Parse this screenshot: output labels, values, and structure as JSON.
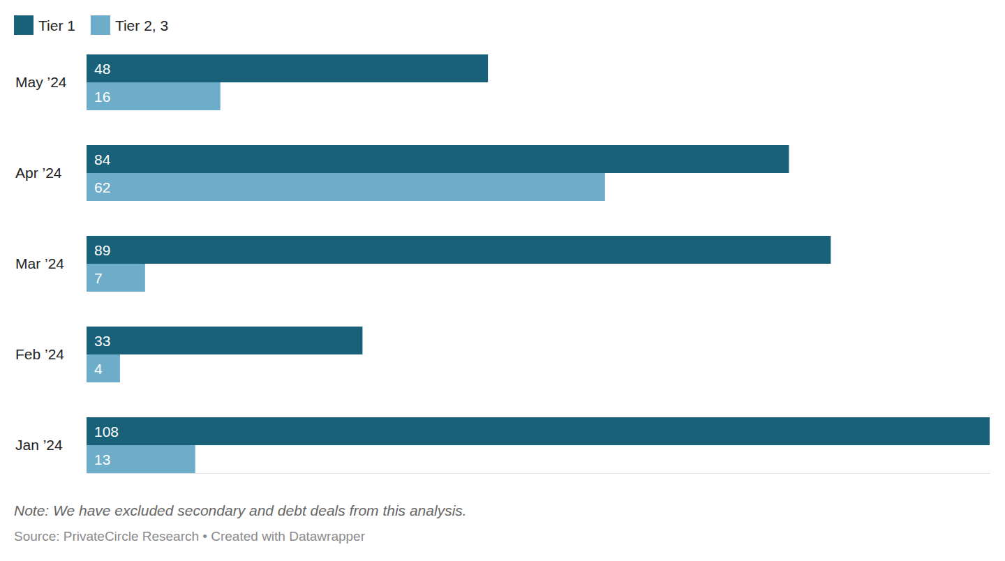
{
  "chart_data": {
    "type": "bar",
    "orientation": "horizontal",
    "data_labels": true,
    "grid": false,
    "legend": "top-left",
    "tick_labels": "y",
    "categories": [
      "May ’24",
      "Apr ’24",
      "Mar ’24",
      "Feb ’24",
      "Jan ’24"
    ],
    "series": [
      {
        "name": "Tier 1",
        "color": "#186179",
        "values": [
          48,
          84,
          89,
          33,
          108
        ]
      },
      {
        "name": "Tier 2, 3",
        "color": "#6eadc9",
        "values": [
          16,
          62,
          7,
          4,
          13
        ]
      }
    ],
    "xlim": [
      0,
      108
    ],
    "note": "Note: We have excluded secondary and debt deals from this analysis.",
    "source": "Source: PrivateCircle Research • Created with Datawrapper"
  }
}
